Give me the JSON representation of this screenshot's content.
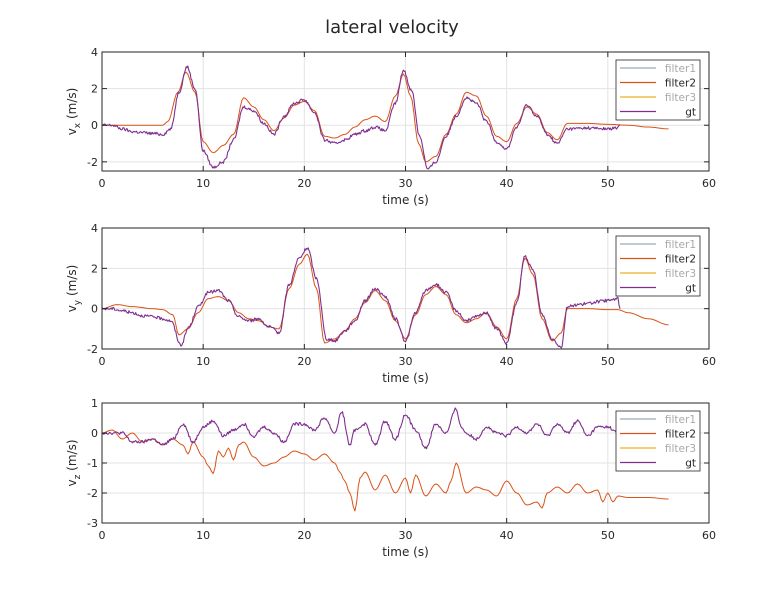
{
  "figure": {
    "title": "lateral velocity"
  },
  "chart_data": [
    {
      "type": "line",
      "xlabel": "time (s)",
      "ylabel_main": "v",
      "ylabel_sub": "x",
      "ylabel_unit": " (m/s)",
      "xlim": [
        0,
        60
      ],
      "ylim": [
        -2.5,
        4
      ],
      "xticks": [
        0,
        10,
        20,
        30,
        40,
        50,
        60
      ],
      "yticks": [
        -2,
        0,
        2,
        4
      ],
      "grid": true,
      "legend": "top-right",
      "series": [
        {
          "name": "filter1",
          "color": "#9aa8b5",
          "label_color": "#a9a9a9",
          "x": [],
          "y": []
        },
        {
          "name": "filter2",
          "color": "#d95319",
          "label_color": "#262626",
          "x": [
            0,
            2,
            4,
            6,
            6.5,
            7.5,
            8.3,
            9.2,
            10,
            11,
            12,
            13,
            14,
            15,
            16,
            17,
            18,
            19,
            20,
            21,
            22,
            23,
            24,
            25,
            26,
            27,
            28,
            29,
            29.8,
            30.5,
            31.3,
            32,
            33,
            34,
            35,
            36,
            37,
            38,
            39,
            40,
            41,
            42,
            43,
            44,
            45,
            46,
            48,
            50,
            52,
            54,
            56
          ],
          "y": [
            0,
            0,
            0,
            0,
            0.2,
            1.8,
            2.9,
            1.8,
            -0.9,
            -1.5,
            -1.1,
            -0.5,
            1.5,
            1.0,
            0.3,
            -0.3,
            0.4,
            1.1,
            1.3,
            0.8,
            -0.6,
            -0.7,
            -0.5,
            -0.1,
            0.3,
            0.5,
            0.2,
            1.6,
            2.8,
            1.6,
            -1.0,
            -2.0,
            -1.7,
            -0.5,
            0.6,
            1.8,
            1.6,
            0.5,
            -0.6,
            -0.9,
            0.1,
            1.0,
            0.6,
            -0.4,
            -0.8,
            0.1,
            0.1,
            0.05,
            0,
            -0.1,
            -0.2
          ]
        },
        {
          "name": "filter3",
          "color": "#edb120",
          "label_color": "#a9a9a9",
          "x": [],
          "y": []
        },
        {
          "name": "gt",
          "color": "#7e2f8e",
          "label_color": "#262626",
          "x": [
            0,
            1,
            2,
            3,
            4,
            5,
            6,
            6.8,
            7.6,
            8.4,
            9.2,
            10,
            11,
            12,
            13,
            14,
            15,
            16,
            17,
            18,
            19,
            20,
            21,
            22,
            23,
            24,
            25,
            26,
            27,
            28,
            29,
            29.8,
            30.6,
            31.4,
            32.2,
            33,
            34,
            35,
            36,
            37,
            38,
            39,
            40,
            41,
            42,
            43,
            44,
            45,
            46,
            48,
            50,
            51,
            51.2
          ],
          "y": [
            0,
            0,
            -0.2,
            -0.35,
            -0.4,
            -0.45,
            -0.5,
            -0.2,
            1.8,
            3.2,
            2.0,
            -1.4,
            -2.3,
            -2.0,
            -0.8,
            1.0,
            0.8,
            0.1,
            -0.5,
            0.5,
            1.2,
            1.4,
            0.7,
            -0.8,
            -1.0,
            -0.8,
            -0.5,
            -0.3,
            -0.1,
            -0.3,
            1.2,
            3.0,
            1.9,
            -0.6,
            -2.4,
            -2.0,
            -0.6,
            0.5,
            1.5,
            1.2,
            0.2,
            -0.9,
            -1.3,
            -0.1,
            1.1,
            0.5,
            -0.5,
            -1.0,
            -0.2,
            -0.15,
            -0.2,
            -0.15,
            0
          ]
        }
      ]
    },
    {
      "type": "line",
      "xlabel": "time (s)",
      "ylabel_main": "v",
      "ylabel_sub": "y",
      "ylabel_unit": " (m/s)",
      "xlim": [
        0,
        60
      ],
      "ylim": [
        -2,
        4
      ],
      "xticks": [
        0,
        10,
        20,
        30,
        40,
        50,
        60
      ],
      "yticks": [
        -2,
        0,
        2,
        4
      ],
      "grid": true,
      "legend": "top-right",
      "series": [
        {
          "name": "filter1",
          "color": "#9aa8b5",
          "label_color": "#a9a9a9",
          "x": [],
          "y": []
        },
        {
          "name": "filter2",
          "color": "#d95319",
          "label_color": "#262626",
          "x": [
            0,
            1.5,
            3,
            5,
            6,
            7,
            7.6,
            8.5,
            9.5,
            10.5,
            11.5,
            12.5,
            13.5,
            14.5,
            15.5,
            16.5,
            17.5,
            18.5,
            19.5,
            20.3,
            21.2,
            22,
            23,
            24,
            25,
            26,
            27,
            28,
            29,
            30,
            31,
            32,
            33,
            34,
            35,
            36,
            37,
            38,
            39,
            40,
            41,
            41.8,
            42.6,
            43.5,
            44.5,
            45.4,
            46,
            48,
            50,
            51,
            52,
            54,
            56
          ],
          "y": [
            0,
            0.2,
            0.1,
            0,
            -0.05,
            -0.3,
            -1.3,
            -1.0,
            -0.2,
            0.5,
            0.6,
            0.4,
            -0.2,
            -0.5,
            -0.6,
            -0.9,
            -1.0,
            1.0,
            2.2,
            2.7,
            1.0,
            -1.7,
            -1.5,
            -1.1,
            -0.5,
            0.3,
            0.9,
            0.4,
            -0.6,
            -1.5,
            -0.3,
            0.7,
            1.1,
            0.7,
            -0.3,
            -0.7,
            -0.5,
            -0.2,
            -0.9,
            -1.5,
            0.5,
            2.5,
            1.7,
            -0.5,
            -1.6,
            -1.2,
            0,
            0,
            -0.05,
            -0.05,
            -0.2,
            -0.5,
            -0.8
          ]
        },
        {
          "name": "filter3",
          "color": "#edb120",
          "label_color": "#a9a9a9",
          "x": [],
          "y": []
        },
        {
          "name": "gt",
          "color": "#7e2f8e",
          "label_color": "#262626",
          "x": [
            0,
            1,
            2,
            3,
            4,
            5,
            6,
            6.8,
            7.8,
            8.6,
            9.5,
            10.5,
            11.5,
            12.5,
            13.5,
            14.5,
            15.5,
            16.5,
            17.5,
            18.5,
            19.5,
            20.3,
            21.2,
            22.2,
            23,
            24,
            25,
            26,
            27,
            28,
            29,
            30,
            31,
            32,
            33,
            34,
            35,
            36,
            37,
            38,
            39,
            40,
            41,
            41.8,
            42.6,
            43.5,
            44.5,
            45.4,
            46,
            47,
            48,
            49,
            50,
            51,
            51.2
          ],
          "y": [
            0,
            0,
            -0.1,
            -0.2,
            -0.35,
            -0.4,
            -0.5,
            -0.6,
            -1.8,
            -0.9,
            0.1,
            0.8,
            0.9,
            0.4,
            -0.4,
            -0.6,
            -0.5,
            -0.9,
            -1.2,
            1.2,
            2.5,
            3.0,
            1.5,
            -1.5,
            -1.6,
            -1.1,
            -0.6,
            0.4,
            1.0,
            0.6,
            -0.5,
            -1.6,
            -0.2,
            0.9,
            1.2,
            0.8,
            -0.1,
            -0.6,
            -0.4,
            -0.2,
            -1.0,
            -1.7,
            0.3,
            2.6,
            1.9,
            -0.3,
            -1.5,
            -1.9,
            0.1,
            0.2,
            0.25,
            0.35,
            0.4,
            0.5,
            0
          ]
        }
      ]
    },
    {
      "type": "line",
      "xlabel": "time (s)",
      "ylabel_main": "v",
      "ylabel_sub": "z",
      "ylabel_unit": " (m/s)",
      "xlim": [
        0,
        60
      ],
      "ylim": [
        -3,
        1
      ],
      "xticks": [
        0,
        10,
        20,
        30,
        40,
        50,
        60
      ],
      "yticks": [
        -3,
        -2,
        -1,
        0,
        1
      ],
      "grid": true,
      "legend": "top-right",
      "series": [
        {
          "name": "filter1",
          "color": "#9aa8b5",
          "label_color": "#a9a9a9",
          "x": [],
          "y": []
        },
        {
          "name": "filter2",
          "color": "#d95319",
          "label_color": "#262626",
          "x": [
            0,
            1,
            2,
            3,
            4,
            5,
            6,
            7,
            8,
            8.5,
            9,
            10,
            10.5,
            11,
            11.5,
            12,
            12.5,
            13,
            13.5,
            14,
            15,
            16,
            17,
            18,
            19,
            20,
            21,
            22,
            23,
            23.5,
            24,
            24.5,
            25,
            25.5,
            26,
            27,
            28,
            29,
            30,
            30.5,
            31,
            32,
            33,
            34,
            34.5,
            35,
            36,
            37,
            38,
            39,
            40,
            41,
            42,
            43,
            43.5,
            44,
            45,
            46,
            47,
            48,
            49,
            49.5,
            50,
            50.5,
            51,
            52,
            54,
            56
          ],
          "y": [
            0,
            0.1,
            -0.2,
            0,
            -0.3,
            -0.2,
            -0.4,
            -0.2,
            -0.4,
            -0.7,
            -0.3,
            -0.8,
            -1.1,
            -1.35,
            -0.6,
            -0.8,
            -0.5,
            -0.9,
            -0.4,
            -0.3,
            -0.8,
            -1.1,
            -1.0,
            -0.8,
            -0.6,
            -0.7,
            -0.9,
            -0.7,
            -1.0,
            -1.3,
            -1.6,
            -2.0,
            -2.6,
            -1.5,
            -1.3,
            -1.9,
            -1.4,
            -2.0,
            -1.5,
            -2.0,
            -1.4,
            -2.1,
            -1.7,
            -2.0,
            -1.6,
            -1.0,
            -2.0,
            -1.8,
            -1.9,
            -2.1,
            -1.6,
            -2.0,
            -2.4,
            -2.3,
            -2.5,
            -2.0,
            -1.8,
            -2.0,
            -1.7,
            -2.0,
            -1.9,
            -2.3,
            -2.0,
            -2.3,
            -2.1,
            -2.15,
            -2.15,
            -2.2
          ]
        },
        {
          "name": "filter3",
          "color": "#edb120",
          "label_color": "#a9a9a9",
          "x": [],
          "y": []
        },
        {
          "name": "gt",
          "color": "#7e2f8e",
          "label_color": "#262626",
          "x": [
            0,
            1,
            2,
            3,
            4,
            5,
            6,
            7,
            8,
            9,
            10,
            11,
            12,
            13,
            14,
            15,
            16,
            17,
            18,
            19,
            20,
            21,
            22,
            23,
            23.7,
            24.5,
            25,
            26,
            27,
            28,
            29,
            30,
            31,
            32,
            33,
            34,
            35,
            35.5,
            36,
            37,
            38,
            39,
            40,
            41,
            42,
            43,
            44,
            45,
            46,
            47,
            48,
            49,
            50,
            51
          ],
          "y": [
            0,
            0,
            0,
            -0.3,
            -0.3,
            -0.2,
            -0.4,
            -0.2,
            0.3,
            -0.3,
            0.2,
            0.4,
            -0.1,
            0.1,
            0.3,
            -0.1,
            0.2,
            0,
            -0.3,
            0.3,
            0.3,
            0.1,
            0.5,
            0,
            0.7,
            -0.4,
            0.1,
            0.3,
            -0.4,
            0.4,
            -0.2,
            0.6,
            0.1,
            -0.5,
            0.3,
            0,
            0.8,
            0.2,
            0,
            -0.2,
            0.2,
            0,
            -0.1,
            0.2,
            0,
            0.3,
            -0.1,
            0.3,
            0,
            0.4,
            -0.1,
            0.2,
            0.2,
            0
          ]
        }
      ]
    }
  ]
}
